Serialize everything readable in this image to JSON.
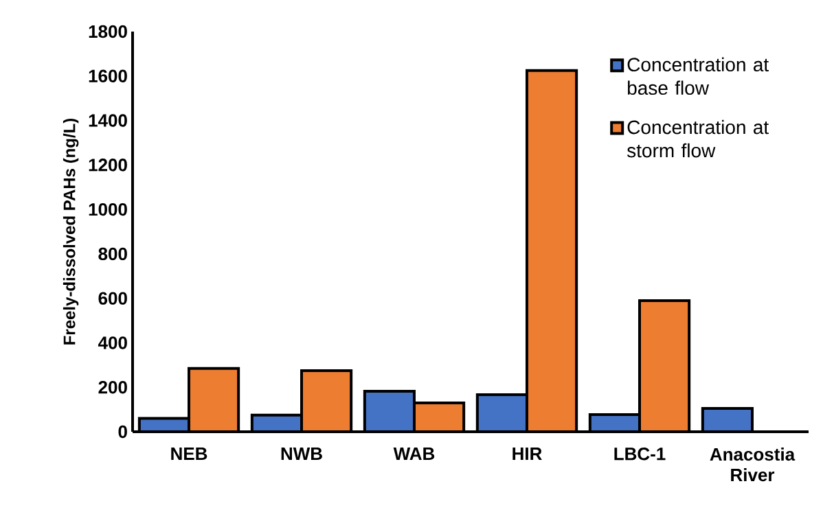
{
  "chart_data": {
    "type": "bar",
    "ylabel": "Freely-dissolved PAHs (ng/L)",
    "categories": [
      "NEB",
      "NWB",
      "WAB",
      "HIR",
      "LBC-1",
      "Anacostia River"
    ],
    "series": [
      {
        "name": "Concentration at base flow",
        "color": "#4472c4",
        "values": [
          60,
          75,
          182,
          167,
          77,
          105
        ]
      },
      {
        "name": "Concentration at storm flow",
        "color": "#ed7d31",
        "values": [
          285,
          275,
          130,
          1625,
          590,
          null
        ]
      }
    ],
    "ylim": [
      0,
      1800
    ],
    "yticks": [
      0,
      200,
      400,
      600,
      800,
      1000,
      1200,
      1400,
      1600,
      1800
    ],
    "legend": "top right"
  }
}
